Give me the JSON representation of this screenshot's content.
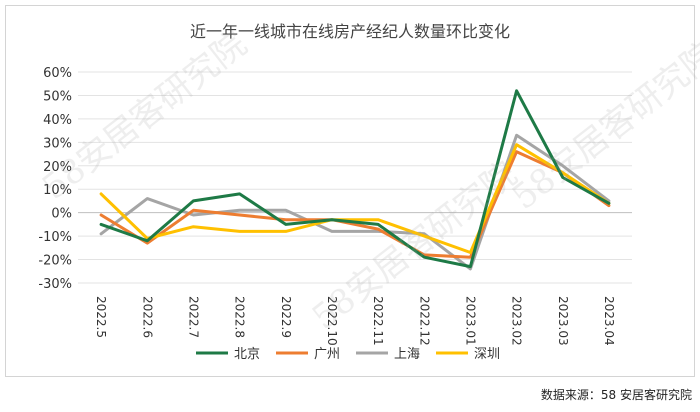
{
  "chart_data": {
    "type": "line",
    "title": "近一年一线城市在线房产经纪人数量环比变化",
    "categories": [
      "2022.5",
      "2022.6",
      "2022.7",
      "2022.8",
      "2022.9",
      "2022.10",
      "2022.11",
      "2022.12",
      "2023.01",
      "2023.02",
      "2023.03",
      "2023.04"
    ],
    "y_ticks": [
      "60%",
      "50%",
      "40%",
      "30%",
      "20%",
      "10%",
      "0%",
      "-10%",
      "-20%",
      "-30%"
    ],
    "ylim": [
      -30,
      60
    ],
    "y_unit": "%",
    "grid": "horizontal",
    "legend_position": "bottom",
    "series": [
      {
        "name": "北京",
        "color": "#1e7a46",
        "values": [
          -5,
          -12,
          5,
          8,
          -5,
          -3,
          -5,
          -19,
          -23,
          52,
          15,
          4
        ]
      },
      {
        "name": "广州",
        "color": "#ed7d31",
        "values": [
          -1,
          -13,
          1,
          -1,
          -3,
          -3,
          -7,
          -18,
          -19,
          26,
          17,
          3
        ]
      },
      {
        "name": "上海",
        "color": "#a5a5a5",
        "values": [
          -9,
          6,
          -1,
          1,
          1,
          -8,
          -8,
          -9,
          -24,
          33,
          20,
          5
        ]
      },
      {
        "name": "深圳",
        "color": "#ffc000",
        "values": [
          8,
          -11,
          -6,
          -8,
          -8,
          -3,
          -3,
          -10,
          -17,
          29,
          17,
          4
        ]
      }
    ]
  },
  "watermark": "58安居客研究院",
  "source_note": "数据来源：58 安居客研究院"
}
